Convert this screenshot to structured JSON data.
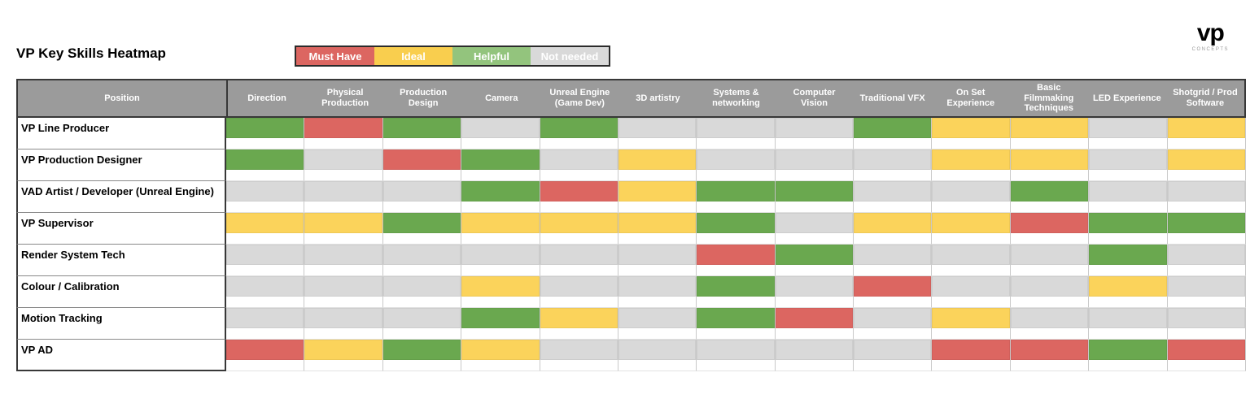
{
  "title": "VP Key Skills Heatmap",
  "logo": {
    "mark": "vp",
    "sub": "CONCEPTS"
  },
  "legend": {
    "items": [
      {
        "key": "must-have",
        "label": "Must Have",
        "color": "#dc6661"
      },
      {
        "key": "ideal",
        "label": "Ideal",
        "color": "#f9ce4e"
      },
      {
        "key": "helpful",
        "label": "Helpful",
        "color": "#93c47d"
      },
      {
        "key": "not-needed",
        "label": "Not needed",
        "color": "#d9d9d9"
      }
    ]
  },
  "table": {
    "position_header": "Position"
  },
  "chart_data": {
    "type": "heatmap",
    "title": "VP Key Skills Heatmap",
    "legend_position": "top",
    "legend_map": {
      "M": "Must Have",
      "I": "Ideal",
      "H": "Helpful",
      "N": "Not needed"
    },
    "cell_colors": {
      "M": "#dc6661",
      "I": "#fbd35b",
      "H": "#6aa84f",
      "N": "#d9d9d9"
    },
    "columns": [
      "Direction",
      "Physical Production",
      "Production Design",
      "Camera",
      "Unreal Engine (Game Dev)",
      "3D artistry",
      "Systems & networking",
      "Computer Vision",
      "Traditional VFX",
      "On Set Experience",
      "Basic Filmmaking Techniques",
      "LED Experience",
      "Shotgrid / Prod Software"
    ],
    "rows": [
      "VP Line Producer",
      "VP Production Designer",
      "VAD Artist / Developer (Unreal Engine)",
      "VP Supervisor",
      "Render System Tech",
      "Colour / Calibration",
      "Motion Tracking",
      "VP AD"
    ],
    "values": [
      [
        "H",
        "M",
        "H",
        "N",
        "H",
        "N",
        "N",
        "N",
        "H",
        "I",
        "I",
        "N",
        "I"
      ],
      [
        "H",
        "N",
        "M",
        "H",
        "N",
        "I",
        "N",
        "N",
        "N",
        "I",
        "I",
        "N",
        "I"
      ],
      [
        "N",
        "N",
        "N",
        "H",
        "M",
        "I",
        "H",
        "H",
        "N",
        "N",
        "H",
        "N",
        "N"
      ],
      [
        "I",
        "I",
        "H",
        "I",
        "I",
        "I",
        "H",
        "N",
        "I",
        "I",
        "M",
        "H",
        "H"
      ],
      [
        "N",
        "N",
        "N",
        "N",
        "N",
        "N",
        "M",
        "H",
        "N",
        "N",
        "N",
        "H",
        "N"
      ],
      [
        "N",
        "N",
        "N",
        "I",
        "N",
        "N",
        "H",
        "N",
        "M",
        "N",
        "N",
        "I",
        "N"
      ],
      [
        "N",
        "N",
        "N",
        "H",
        "I",
        "N",
        "H",
        "M",
        "N",
        "I",
        "N",
        "N",
        "N"
      ],
      [
        "M",
        "I",
        "H",
        "I",
        "N",
        "N",
        "N",
        "N",
        "N",
        "M",
        "M",
        "H",
        "M"
      ]
    ]
  }
}
